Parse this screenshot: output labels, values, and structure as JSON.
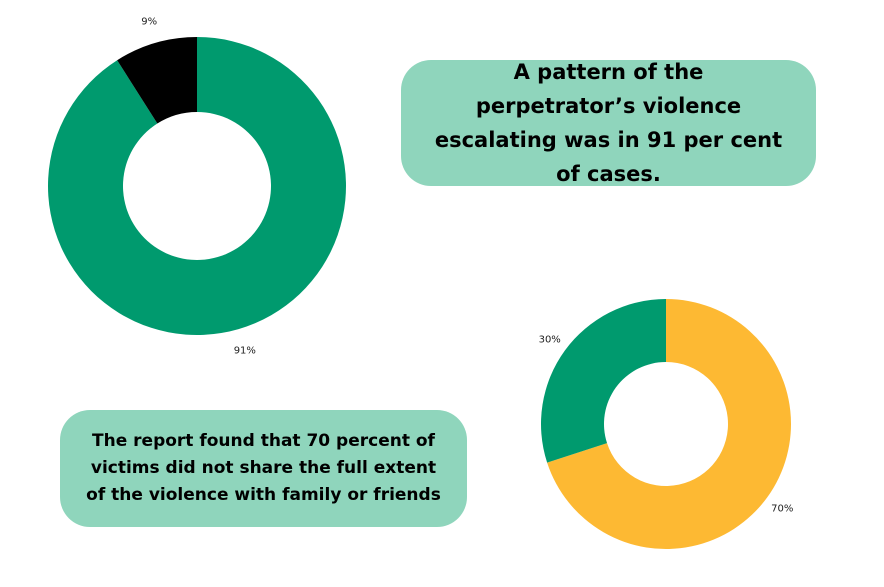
{
  "chart_data": [
    {
      "type": "donut",
      "values": [
        91,
        9
      ],
      "value_labels": [
        "91%",
        "9%"
      ],
      "colors": [
        "#009a6e",
        "#000000"
      ],
      "annotation": "A pattern of the perpetrator’s violence escalating was in 91 per cent of cases."
    },
    {
      "type": "donut",
      "values": [
        70,
        30
      ],
      "value_labels": [
        "70%",
        "30%"
      ],
      "colors": [
        "#fdb933",
        "#009a6e"
      ],
      "annotation": "The report found that 70 percent of victims did not share the full extent of the violence with family or friends"
    }
  ]
}
